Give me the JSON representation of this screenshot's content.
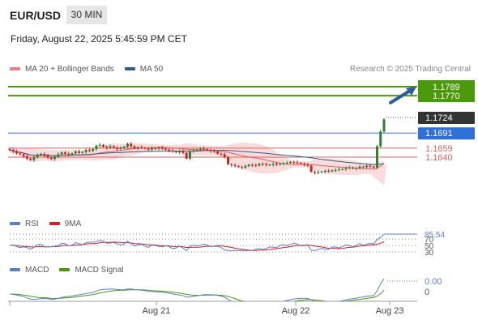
{
  "header": {
    "symbol": "EUR/USD",
    "timeframe": "30 MIN",
    "datetime": "Friday, August 22, 2025 5:45:59 PM CET"
  },
  "legend": {
    "bollinger_label": "MA 20 + Bollinger Bands",
    "ma50_label": "MA 50",
    "credit": "Research © 2025 Trading Central"
  },
  "colors": {
    "up": "#2e7d32",
    "down": "#c62828",
    "bollinger": "#f08080",
    "ma50": "#2f5d8c",
    "resistance": "#4a9a0c",
    "support_blue": "#2f6fd6",
    "support_red": "#e06060",
    "rsi": "#5b7fd0",
    "rsi_ma": "#d32020",
    "macd": "#5b7fd0",
    "macd_signal": "#4a9a0c",
    "last_price": "#333333",
    "arrow": "#2f5d9c"
  },
  "chart_data": [
    {
      "type": "candlestick",
      "x_labels": [
        "Aug 21",
        "Aug 22",
        "Aug 23"
      ],
      "y_ticks": [
        "1.1789",
        "1.1770",
        "1.1724",
        "1.1691",
        "1.1659",
        "1.1640"
      ],
      "levels": [
        {
          "value": 1.1789,
          "label": "1.1789",
          "kind": "resistance"
        },
        {
          "value": 1.177,
          "label": "1.1770",
          "kind": "resistance"
        },
        {
          "value": 1.1691,
          "label": "1.1691",
          "kind": "support_blue"
        },
        {
          "value": 1.1659,
          "label": "1.1659",
          "kind": "support_red"
        },
        {
          "value": 1.164,
          "label": "1.1640",
          "kind": "support_red"
        }
      ],
      "last_price": 1.1724,
      "close": [
        1.1655,
        1.1652,
        1.1648,
        1.1646,
        1.1642,
        1.1637,
        1.1634,
        1.164,
        1.1644,
        1.1647,
        1.1643,
        1.1639,
        1.1636,
        1.1641,
        1.1646,
        1.165,
        1.1647,
        1.1645,
        1.1648,
        1.1652,
        1.1649,
        1.1651,
        1.1655,
        1.1653,
        1.1657,
        1.1664,
        1.1666,
        1.1662,
        1.166,
        1.1663,
        1.166,
        1.1657,
        1.1659,
        1.1662,
        1.1668,
        1.1663,
        1.1659,
        1.1661,
        1.166,
        1.1658,
        1.1656,
        1.1659,
        1.1658,
        1.166,
        1.1658,
        1.1656,
        1.1654,
        1.1652,
        1.165,
        1.1653,
        1.1649,
        1.1637,
        1.1652,
        1.1654,
        1.1656,
        1.1658,
        1.1657,
        1.1655,
        1.1653,
        1.1652,
        1.1647,
        1.1646,
        1.164,
        1.1625,
        1.1623,
        1.1621,
        1.1619,
        1.1618,
        1.1621,
        1.1624,
        1.1623,
        1.1622,
        1.1626,
        1.1625,
        1.1623,
        1.1624,
        1.1626,
        1.1624,
        1.1626,
        1.1627,
        1.1628,
        1.163,
        1.1629,
        1.1628,
        1.1626,
        1.1624,
        1.1622,
        1.1609,
        1.1607,
        1.1608,
        1.1609,
        1.1611,
        1.161,
        1.1612,
        1.1613,
        1.1614,
        1.1615,
        1.1617,
        1.1618,
        1.1616,
        1.1617,
        1.162,
        1.1619,
        1.1622,
        1.162,
        1.1618,
        1.1663,
        1.1694,
        1.172
      ],
      "ma20_bollinger_ma50": "overlay lines",
      "arrow_target": 1.1789
    },
    {
      "type": "line",
      "title": "RSI",
      "series": [
        {
          "name": "RSI",
          "last": 85.54
        },
        {
          "name": "9MA"
        }
      ],
      "y_ticks": [
        "85.54",
        "70",
        "50",
        "30"
      ]
    },
    {
      "type": "line",
      "title": "MACD",
      "series": [
        {
          "name": "MACD",
          "last": 0.0
        },
        {
          "name": "MACD Signal"
        }
      ],
      "y_ticks": [
        "0.00",
        "0"
      ]
    }
  ]
}
